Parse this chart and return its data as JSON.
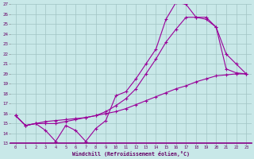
{
  "xlabel": "Windchill (Refroidissement éolien,°C)",
  "xlim": [
    -0.5,
    23.5
  ],
  "ylim": [
    13,
    27
  ],
  "xticks": [
    0,
    1,
    2,
    3,
    4,
    5,
    6,
    7,
    8,
    9,
    10,
    11,
    12,
    13,
    14,
    15,
    16,
    17,
    18,
    19,
    20,
    21,
    22,
    23
  ],
  "yticks": [
    13,
    14,
    15,
    16,
    17,
    18,
    19,
    20,
    21,
    22,
    23,
    24,
    25,
    26,
    27
  ],
  "background_color": "#c8e8e8",
  "grid_color": "#a0c4c4",
  "line_color": "#990099",
  "line1_x": [
    0,
    1,
    2,
    3,
    4,
    5,
    6,
    7,
    8,
    9,
    10,
    11,
    12,
    13,
    14,
    15,
    16,
    17,
    18,
    19,
    20,
    21,
    22,
    23
  ],
  "line1_y": [
    15.8,
    14.8,
    15.0,
    14.3,
    13.2,
    14.8,
    14.3,
    13.2,
    14.5,
    15.3,
    17.8,
    18.2,
    19.5,
    21.0,
    22.5,
    25.5,
    27.2,
    27.0,
    25.7,
    25.5,
    24.7,
    20.5,
    20.1,
    20.0
  ],
  "line2_x": [
    0,
    1,
    2,
    3,
    4,
    5,
    6,
    7,
    8,
    9,
    10,
    11,
    12,
    13,
    14,
    15,
    16,
    17,
    18,
    19,
    20,
    21,
    22,
    23
  ],
  "line2_y": [
    15.8,
    14.8,
    15.0,
    15.0,
    15.0,
    15.2,
    15.4,
    15.6,
    15.8,
    16.2,
    16.8,
    17.5,
    18.5,
    20.0,
    21.5,
    23.2,
    24.5,
    25.7,
    25.7,
    25.7,
    24.7,
    22.0,
    21.0,
    20.0
  ],
  "line3_x": [
    0,
    1,
    2,
    3,
    4,
    5,
    6,
    7,
    8,
    9,
    10,
    11,
    12,
    13,
    14,
    15,
    16,
    17,
    18,
    19,
    20,
    21,
    22,
    23
  ],
  "line3_y": [
    15.8,
    14.8,
    15.0,
    15.2,
    15.3,
    15.4,
    15.5,
    15.6,
    15.8,
    16.0,
    16.2,
    16.5,
    16.9,
    17.3,
    17.7,
    18.1,
    18.5,
    18.8,
    19.2,
    19.5,
    19.8,
    19.9,
    20.0,
    20.0
  ]
}
